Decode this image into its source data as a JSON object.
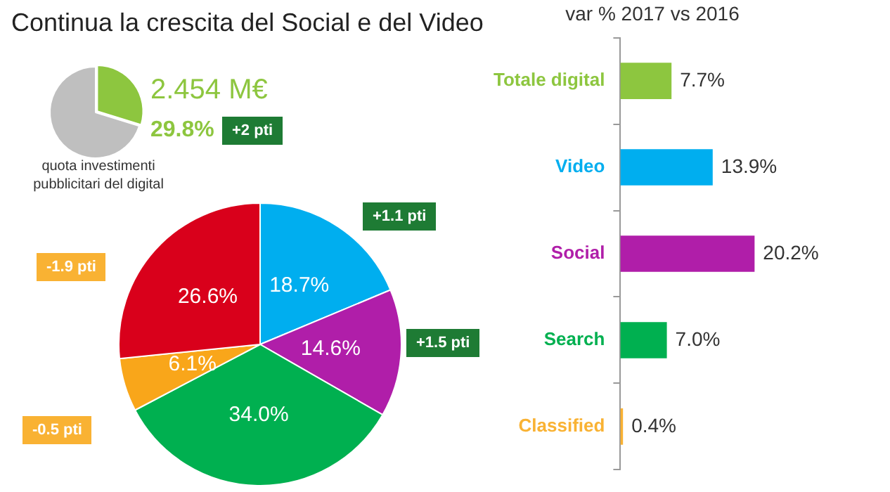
{
  "chart_data": [
    {
      "type": "pie",
      "title": "Continua la crescita del Social e del Video",
      "categories": [
        null,
        null
      ],
      "values": [
        29.8,
        70.2
      ],
      "colors": [
        "#8dc63f",
        "#bfbfbf"
      ],
      "value_labels": [
        "29.8%",
        null
      ],
      "annotations": [
        "2.454 M€",
        "+2 pti",
        "quota investimenti pubblicitari del digital"
      ]
    },
    {
      "type": "pie",
      "categories": [
        null,
        null,
        null,
        null,
        null
      ],
      "values": [
        18.7,
        14.6,
        34.0,
        6.1,
        26.6
      ],
      "colors": [
        "#00aeef",
        "#b01ea9",
        "#00b050",
        "#f9a61a",
        "#d9001b"
      ],
      "value_labels": [
        "18.7%",
        "14.6%",
        "34.0%",
        "6.1%",
        "26.6%"
      ],
      "annotations": [
        "+1.1 pti",
        "+1.5 pti",
        "-1.9 pti",
        "-0.5 pti"
      ]
    },
    {
      "type": "bar",
      "orientation": "horizontal",
      "title": "var % 2017 vs 2016",
      "categories": [
        "Totale digital",
        "Video",
        "Social",
        "Search",
        "Classified"
      ],
      "values": [
        7.7,
        13.9,
        20.2,
        7.0,
        0.4
      ],
      "colors": [
        "#8dc63f",
        "#00aeef",
        "#b01ea9",
        "#00b050",
        "#f9b233"
      ],
      "value_labels": [
        "7.7%",
        "13.9%",
        "20.2%",
        "7.0%",
        "0.4%"
      ]
    }
  ]
}
